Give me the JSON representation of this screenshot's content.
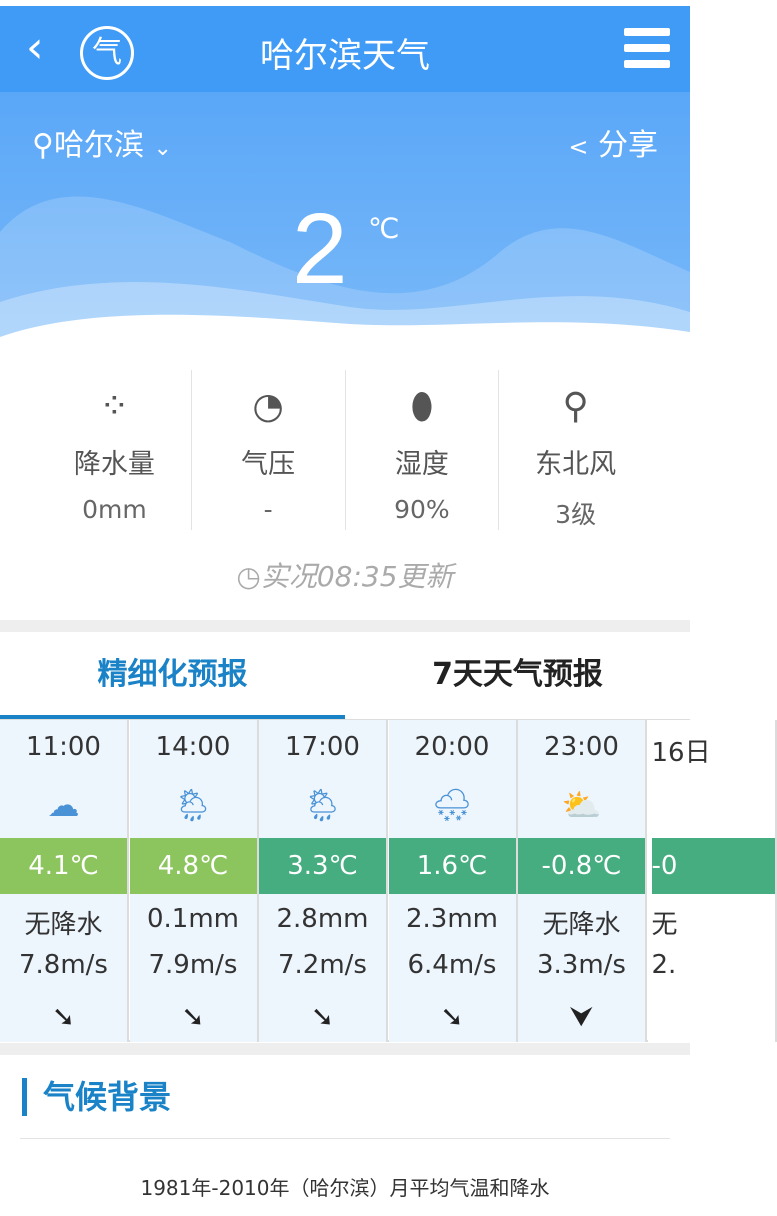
{
  "header": {
    "title": "哈尔滨天气",
    "back_icon": "chevron-left-icon",
    "logo_glyph": "气",
    "menu_icon": "hamburger-icon",
    "color": "#3f9bf5"
  },
  "location": {
    "city": "哈尔滨",
    "dropdown": "⌄",
    "share": "分享"
  },
  "current": {
    "temperature": "2",
    "unit": "℃"
  },
  "stats": [
    {
      "icon": "raindrops-icon",
      "glyph": "💧",
      "label": "降水量",
      "value": "0mm"
    },
    {
      "icon": "gauge-icon",
      "glyph": "◔",
      "label": "气压",
      "value": "-"
    },
    {
      "icon": "humidity-icon",
      "glyph": "💧",
      "label": "湿度",
      "value": "90%"
    },
    {
      "icon": "wind-turbine-icon",
      "glyph": "⚲",
      "label": "东北风",
      "value": "3级"
    }
  ],
  "update": "实况08:35更新",
  "tabs": [
    {
      "label": "精细化预报",
      "active": true
    },
    {
      "label": "7天天气预报",
      "active": false
    }
  ],
  "forecast": [
    {
      "time": "11:00",
      "weather": "cloudy",
      "glyph": "☁",
      "temp": "4.1℃",
      "color": "#8cc45e",
      "precip": "无降水",
      "wind_speed": "7.8m/s",
      "wind_dir": "➘"
    },
    {
      "time": "14:00",
      "weather": "partly-cloudy-rain",
      "glyph": "🌦",
      "temp": "4.8℃",
      "color": "#8cc45e",
      "precip": "0.1mm",
      "wind_speed": "7.9m/s",
      "wind_dir": "➘"
    },
    {
      "time": "17:00",
      "weather": "partly-cloudy-rain",
      "glyph": "🌦",
      "temp": "3.3℃",
      "color": "#45ad7f",
      "precip": "2.8mm",
      "wind_speed": "7.2m/s",
      "wind_dir": "➘"
    },
    {
      "time": "20:00",
      "weather": "snow",
      "glyph": "🌨",
      "temp": "1.6℃",
      "color": "#45ad7f",
      "precip": "2.3mm",
      "wind_speed": "6.4m/s",
      "wind_dir": "➘"
    },
    {
      "time": "23:00",
      "weather": "partly-cloudy",
      "glyph": "⛅",
      "temp": "-0.8℃",
      "color": "#45ad7f",
      "precip": "无降水",
      "wind_speed": "3.3m/s",
      "wind_dir": "⮟"
    },
    {
      "time": "16日",
      "weather": "",
      "glyph": "",
      "temp": "-0",
      "color": "#45ad7f",
      "precip": "无",
      "wind_speed": "2.",
      "wind_dir": ""
    }
  ],
  "climate": {
    "title": "气候背景",
    "caption": "1981年-2010年（哈尔滨）月平均气温和降水"
  }
}
